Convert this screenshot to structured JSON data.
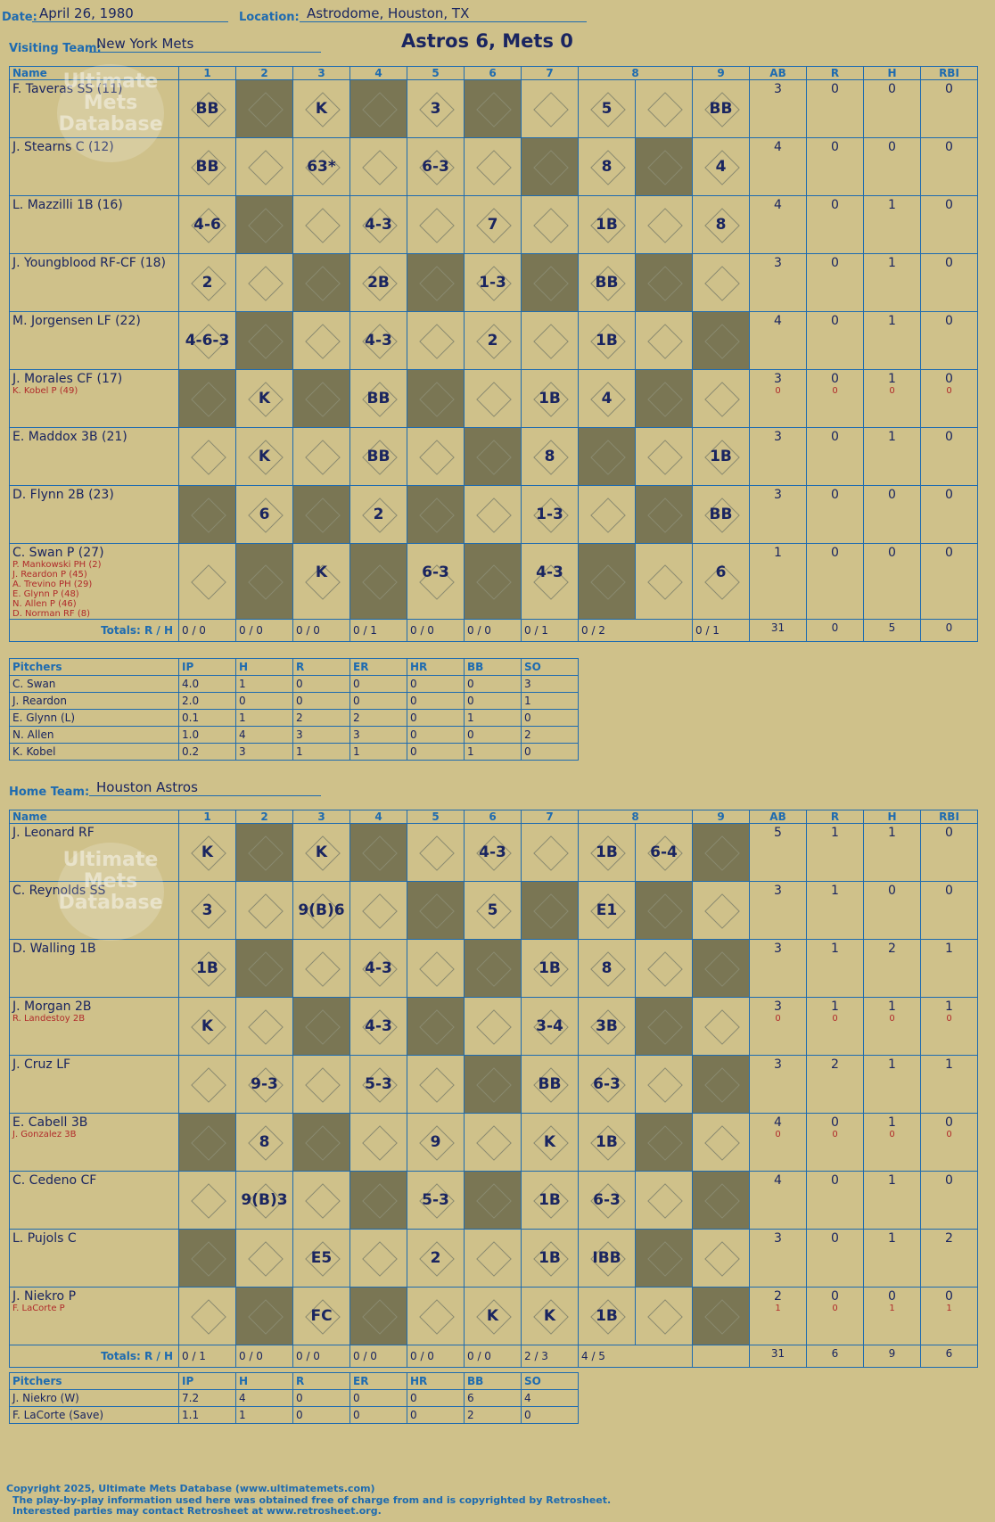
{
  "header": {
    "date_label": "Date:",
    "date": "April 26, 1980",
    "location_label": "Location:",
    "location": "Astrodome, Houston, TX",
    "visiting_label": "Visiting Team:",
    "visiting_team": "New York Mets",
    "home_label": "Home Team:",
    "home_team": "Houston Astros",
    "game_title": "Astros 6, Mets 0"
  },
  "columns": {
    "name": "Name",
    "innings": [
      "1",
      "2",
      "3",
      "4",
      "5",
      "6",
      "7",
      "8",
      "9"
    ],
    "ab": "AB",
    "r": "R",
    "h": "H",
    "rbi": "RBI",
    "totals": "Totals:",
    "rh": "R / H"
  },
  "visitors": [
    {
      "name": "F. Taveras SS (11)",
      "subs": [],
      "ab": "3",
      "r": "0",
      "h": "0",
      "rbi": "0",
      "cells": [
        "BB",
        "",
        "K",
        "",
        "3",
        "",
        "",
        "5",
        "",
        "BB"
      ]
    },
    {
      "name": "J. Stearns C (12)",
      "subs": [],
      "ab": "4",
      "r": "0",
      "h": "0",
      "rbi": "0",
      "cells": [
        "BB",
        "",
        "63*",
        "",
        "6-3",
        "",
        "",
        "8",
        "",
        "4"
      ]
    },
    {
      "name": "L. Mazzilli 1B (16)",
      "subs": [],
      "ab": "4",
      "r": "0",
      "h": "1",
      "rbi": "0",
      "cells": [
        "4-6",
        "",
        "",
        "4-3",
        "",
        "7",
        "",
        "1B",
        "",
        "8"
      ]
    },
    {
      "name": "J. Youngblood RF-CF (18)",
      "subs": [],
      "ab": "3",
      "r": "0",
      "h": "1",
      "rbi": "0",
      "cells": [
        "2",
        "",
        "",
        "2B",
        "",
        "1-3",
        "",
        "BB",
        "",
        ""
      ]
    },
    {
      "name": "M. Jorgensen LF (22)",
      "subs": [],
      "ab": "4",
      "r": "0",
      "h": "1",
      "rbi": "0",
      "cells": [
        "4-6-3",
        "",
        "",
        "4-3",
        "",
        "2",
        "",
        "1B",
        "",
        ""
      ]
    },
    {
      "name": "J. Morales CF (17)",
      "subs": [
        "K. Kobel P (49)"
      ],
      "ab": "3",
      "r": "0",
      "h": "1",
      "rbi": "0",
      "ab2": "0",
      "r2": "0",
      "h2": "0",
      "rbi2": "0",
      "cells": [
        "",
        "K",
        "",
        "BB",
        "",
        "",
        "1B",
        "4",
        "",
        ""
      ]
    },
    {
      "name": "E. Maddox 3B (21)",
      "subs": [],
      "ab": "3",
      "r": "0",
      "h": "1",
      "rbi": "0",
      "cells": [
        "",
        "K",
        "",
        "BB",
        "",
        "",
        "8",
        "",
        "",
        "1B"
      ]
    },
    {
      "name": "D. Flynn 2B (23)",
      "subs": [],
      "ab": "3",
      "r": "0",
      "h": "0",
      "rbi": "0",
      "cells": [
        "",
        "6",
        "",
        "2",
        "",
        "",
        "1-3",
        "",
        "",
        "BB"
      ]
    },
    {
      "name": "C. Swan P (27)",
      "subs": [
        "P. Mankowski PH (2)",
        "J. Reardon P (45)",
        "A. Trevino PH (29)",
        "E. Glynn P (48)",
        "N. Allen P (46)",
        "D. Norman RF (8)"
      ],
      "ab": "1",
      "r": "0",
      "h": "0",
      "rbi": "0",
      "cells": [
        "",
        "",
        "K",
        "",
        "6-3",
        "",
        "4-3",
        "",
        "",
        "6"
      ]
    }
  ],
  "visitors_totals": {
    "innings": [
      "0 / 0",
      "0 / 0",
      "0 / 0",
      "0 / 1",
      "0 / 0",
      "0 / 0",
      "0 / 1",
      "0 / 2",
      "0 / 1"
    ],
    "ab": "31",
    "r": "0",
    "h": "5",
    "rbi": "0"
  },
  "visitors_pitchers": {
    "headers": [
      "Pitchers",
      "IP",
      "H",
      "R",
      "ER",
      "HR",
      "BB",
      "SO"
    ],
    "rows": [
      [
        "C. Swan",
        "4.0",
        "1",
        "0",
        "0",
        "0",
        "0",
        "3"
      ],
      [
        "J. Reardon",
        "2.0",
        "0",
        "0",
        "0",
        "0",
        "0",
        "1"
      ],
      [
        "E. Glynn (L)",
        "0.1",
        "1",
        "2",
        "2",
        "0",
        "1",
        "0"
      ],
      [
        "N. Allen",
        "1.0",
        "4",
        "3",
        "3",
        "0",
        "0",
        "2"
      ],
      [
        "K. Kobel",
        "0.2",
        "3",
        "1",
        "1",
        "0",
        "1",
        "0"
      ]
    ]
  },
  "home": [
    {
      "name": "J. Leonard RF",
      "subs": [],
      "ab": "5",
      "r": "1",
      "h": "1",
      "rbi": "0",
      "cells": [
        "K",
        "",
        "K",
        "",
        "",
        "4-3",
        "",
        "1B",
        "6-4",
        ""
      ]
    },
    {
      "name": "C. Reynolds SS",
      "subs": [],
      "ab": "3",
      "r": "1",
      "h": "0",
      "rbi": "0",
      "cells": [
        "3",
        "",
        "9(B)6",
        "",
        "",
        "5",
        "",
        "E1",
        "",
        ""
      ]
    },
    {
      "name": "D. Walling 1B",
      "subs": [],
      "ab": "3",
      "r": "1",
      "h": "2",
      "rbi": "1",
      "cells": [
        "1B",
        "",
        "",
        "4-3",
        "",
        "",
        "1B",
        "8",
        "",
        ""
      ]
    },
    {
      "name": "J. Morgan 2B",
      "subs": [
        "R. Landestoy 2B"
      ],
      "ab": "3",
      "r": "1",
      "h": "1",
      "rbi": "1",
      "ab2": "0",
      "r2": "0",
      "h2": "0",
      "rbi2": "0",
      "cells": [
        "K",
        "",
        "",
        "4-3",
        "",
        "",
        "3-4",
        "3B",
        "",
        ""
      ]
    },
    {
      "name": "J. Cruz LF",
      "subs": [],
      "ab": "3",
      "r": "2",
      "h": "1",
      "rbi": "1",
      "cells": [
        "",
        "9-3",
        "",
        "5-3",
        "",
        "",
        "BB",
        "6-3",
        "",
        ""
      ]
    },
    {
      "name": "E. Cabell 3B",
      "subs": [
        "J. Gonzalez 3B"
      ],
      "ab": "4",
      "r": "0",
      "h": "1",
      "rbi": "0",
      "ab2": "0",
      "r2": "0",
      "h2": "0",
      "rbi2": "0",
      "cells": [
        "",
        "8",
        "",
        "",
        "9",
        "",
        "K",
        "1B",
        "",
        ""
      ]
    },
    {
      "name": "C. Cedeno CF",
      "subs": [],
      "ab": "4",
      "r": "0",
      "h": "1",
      "rbi": "0",
      "cells": [
        "",
        "9(B)3",
        "",
        "",
        "5-3",
        "",
        "1B",
        "6-3",
        "",
        ""
      ]
    },
    {
      "name": "L. Pujols C",
      "subs": [],
      "ab": "3",
      "r": "0",
      "h": "1",
      "rbi": "2",
      "cells": [
        "",
        "",
        "E5",
        "",
        "2",
        "",
        "1B",
        "IBB",
        "",
        ""
      ]
    },
    {
      "name": "J. Niekro P",
      "subs": [
        "F. LaCorte P"
      ],
      "ab": "2",
      "r": "0",
      "h": "0",
      "rbi": "0",
      "ab2": "1",
      "r2": "0",
      "h2": "1",
      "rbi2": "1",
      "cells": [
        "",
        "",
        "FC",
        "",
        "",
        "K",
        "K",
        "1B",
        "",
        ""
      ]
    }
  ],
  "home_totals": {
    "innings": [
      "0 / 1",
      "0 / 0",
      "0 / 0",
      "0 / 0",
      "0 / 0",
      "0 / 0",
      "2 / 3",
      "4 / 5",
      ""
    ],
    "ab": "31",
    "r": "6",
    "h": "9",
    "rbi": "6"
  },
  "home_pitchers": {
    "headers": [
      "Pitchers",
      "IP",
      "H",
      "R",
      "ER",
      "HR",
      "BB",
      "SO"
    ],
    "rows": [
      [
        "J. Niekro (W)",
        "7.2",
        "4",
        "0",
        "0",
        "0",
        "6",
        "4"
      ],
      [
        "F. LaCorte (Save)",
        "1.1",
        "1",
        "0",
        "0",
        "0",
        "2",
        "0"
      ]
    ]
  },
  "footer": {
    "line1": "Copyright 2025, Ultimate Mets Database (www.ultimatemets.com)",
    "line2": "The play-by-play information used here was obtained free of charge from and is copyrighted by Retrosheet.",
    "line3": "Interested parties may contact Retrosheet at www.retrosheet.org."
  },
  "watermark": "Ultimate Mets Database",
  "colors": {
    "paper": "#cfc18a",
    "dark_cell": "#7a7654",
    "grid": "#1e6bb0",
    "ink": "#1a2560",
    "red": "#b02a2a"
  }
}
